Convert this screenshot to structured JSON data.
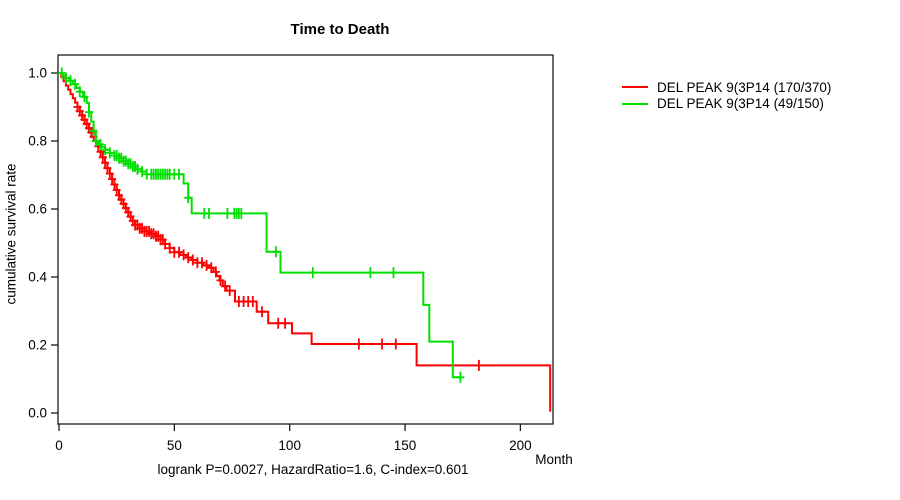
{
  "window": {
    "background": "#FFFFFF"
  },
  "chart_data": {
    "type": "line",
    "subtype": "kaplan-meier-survival-step",
    "title": "Time to Death",
    "xlabel": "Month",
    "ylabel": "cumulative survival rate",
    "footer": "logrank P=0.0027, HazardRatio=1.6, C-index=0.601",
    "xticks": [
      0,
      50,
      100,
      150,
      200
    ],
    "yticks": [
      "0.0",
      "0.2",
      "0.4",
      "0.6",
      "0.8",
      "1.0"
    ],
    "xlim": [
      0,
      214
    ],
    "ylim": [
      0.0,
      1.04
    ],
    "grid": false,
    "legend_position": "right-outside",
    "axis_color": "#1a1a1a",
    "series": [
      {
        "name": "DEL PEAK 9(3P14 (170/370)",
        "color": "#FF0000",
        "end_month": 212.9,
        "steps": [
          [
            0,
            1.0
          ],
          [
            1,
            0.988
          ],
          [
            2,
            0.976
          ],
          [
            3,
            0.963
          ],
          [
            4,
            0.951
          ],
          [
            5,
            0.938
          ],
          [
            6,
            0.926
          ],
          [
            7,
            0.913
          ],
          [
            8,
            0.9
          ],
          [
            9,
            0.888
          ],
          [
            10,
            0.875
          ],
          [
            11,
            0.863
          ],
          [
            12,
            0.85
          ],
          [
            13,
            0.838
          ],
          [
            14,
            0.825
          ],
          [
            15,
            0.813
          ],
          [
            16,
            0.8
          ],
          [
            17,
            0.784
          ],
          [
            18,
            0.768
          ],
          [
            19,
            0.752
          ],
          [
            20,
            0.736
          ],
          [
            21,
            0.72
          ],
          [
            22,
            0.704
          ],
          [
            23,
            0.688
          ],
          [
            24,
            0.672
          ],
          [
            25,
            0.656
          ],
          [
            26,
            0.64
          ],
          [
            27,
            0.628
          ],
          [
            28,
            0.615
          ],
          [
            29,
            0.603
          ],
          [
            30,
            0.59
          ],
          [
            31,
            0.578
          ],
          [
            32,
            0.565
          ],
          [
            33,
            0.553
          ],
          [
            35,
            0.543
          ],
          [
            37,
            0.534
          ],
          [
            39.5,
            0.527
          ],
          [
            42,
            0.52
          ],
          [
            44,
            0.51
          ],
          [
            46,
            0.497
          ],
          [
            48,
            0.485
          ],
          [
            50,
            0.473
          ],
          [
            52.5,
            0.465
          ],
          [
            55,
            0.457
          ],
          [
            57.5,
            0.45
          ],
          [
            60,
            0.442
          ],
          [
            62.5,
            0.434
          ],
          [
            65,
            0.427
          ],
          [
            67,
            0.415
          ],
          [
            68.3,
            0.403
          ],
          [
            69.6,
            0.39
          ],
          [
            71,
            0.373
          ],
          [
            72.5,
            0.36
          ],
          [
            76.3,
            0.328
          ],
          [
            85.7,
            0.298
          ],
          [
            90.7,
            0.264
          ],
          [
            101,
            0.234
          ],
          [
            109.5,
            0.203
          ],
          [
            155,
            0.14
          ],
          [
            212.9,
            0.004
          ]
        ],
        "censor_months": [
          8,
          9,
          10,
          11,
          12,
          13,
          14,
          15,
          16,
          17,
          18,
          19,
          20,
          21,
          22,
          23,
          24,
          25,
          26,
          27,
          28,
          29,
          30,
          31,
          32,
          33,
          34,
          35,
          36,
          37,
          38,
          39,
          40,
          41,
          42,
          43,
          44,
          45,
          46,
          48,
          50,
          52,
          54,
          56,
          58,
          60,
          62,
          64,
          66,
          68,
          70,
          72,
          74,
          78,
          80,
          82,
          84,
          88,
          95,
          98,
          130,
          140,
          146,
          182
        ]
      },
      {
        "name": "DEL PEAK 9(3P14 (49/150)",
        "color": "#00DF00",
        "end_month": 174.3,
        "steps": [
          [
            0,
            1.0
          ],
          [
            1.5,
            0.993
          ],
          [
            3,
            0.985
          ],
          [
            4.5,
            0.977
          ],
          [
            6,
            0.967
          ],
          [
            7.5,
            0.956
          ],
          [
            9,
            0.945
          ],
          [
            10.5,
            0.93
          ],
          [
            12,
            0.912
          ],
          [
            13,
            0.885
          ],
          [
            14,
            0.857
          ],
          [
            15,
            0.83
          ],
          [
            16,
            0.8
          ],
          [
            17,
            0.79
          ],
          [
            18.5,
            0.782
          ],
          [
            20,
            0.774
          ],
          [
            22,
            0.765
          ],
          [
            24,
            0.757
          ],
          [
            26,
            0.749
          ],
          [
            28,
            0.741
          ],
          [
            30,
            0.733
          ],
          [
            32,
            0.725
          ],
          [
            34,
            0.717
          ],
          [
            36,
            0.71
          ],
          [
            38,
            0.702
          ],
          [
            54,
            0.675
          ],
          [
            56,
            0.633
          ],
          [
            57.5,
            0.587
          ],
          [
            90,
            0.474
          ],
          [
            96,
            0.413
          ],
          [
            157.9,
            0.318
          ],
          [
            160.5,
            0.21
          ],
          [
            170.7,
            0.105
          ]
        ],
        "censor_months": [
          1.2,
          3,
          5,
          7,
          9,
          11,
          13,
          15,
          16,
          18,
          20,
          22,
          24,
          25,
          26,
          27,
          28,
          29,
          30,
          31,
          32,
          33,
          34,
          36,
          38,
          40,
          41,
          42,
          43,
          44,
          45,
          46,
          47,
          48,
          50,
          52,
          56,
          63,
          65,
          73,
          76,
          77,
          78,
          79,
          94,
          110,
          135,
          145,
          174
        ]
      }
    ]
  }
}
